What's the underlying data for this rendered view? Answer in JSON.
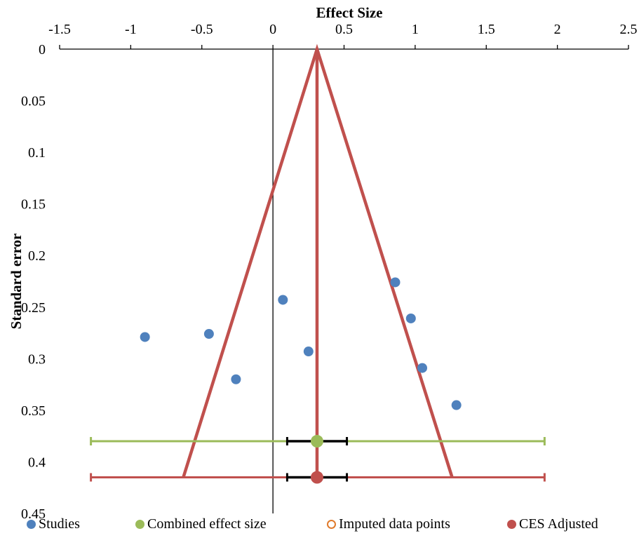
{
  "chart_data": {
    "type": "scatter",
    "title": "",
    "xlabel": "Effect Size",
    "ylabel": "Standard error",
    "xlim": [
      -1.5,
      2.5
    ],
    "ylim": [
      0,
      0.45
    ],
    "x_ticks": [
      "-1.5",
      "-1",
      "-0.5",
      "0",
      "0.5",
      "1",
      "1.5",
      "2",
      "2.5"
    ],
    "y_ticks": [
      "0",
      "0.05",
      "0.1",
      "0.15",
      "0.2",
      "0.25",
      "0.3",
      "0.35",
      "0.4",
      "0.45"
    ],
    "x_axis_position": "top",
    "y_axis_reversed": true,
    "grid": false,
    "legend_position": "bottom",
    "colors": {
      "studies": "#4f81bd",
      "combined": "#9bbb59",
      "imputed": "#e07b2c",
      "adjusted": "#c0504d",
      "whisker": "#000000"
    },
    "series": [
      {
        "name": "Studies",
        "points": [
          {
            "x": -0.9,
            "y": 0.279
          },
          {
            "x": -0.45,
            "y": 0.276
          },
          {
            "x": -0.26,
            "y": 0.32
          },
          {
            "x": 0.07,
            "y": 0.243
          },
          {
            "x": 0.25,
            "y": 0.293
          },
          {
            "x": 0.86,
            "y": 0.226
          },
          {
            "x": 0.97,
            "y": 0.261
          },
          {
            "x": 1.05,
            "y": 0.309
          },
          {
            "x": 1.29,
            "y": 0.345
          }
        ]
      },
      {
        "name": "Combined effect size",
        "points": [
          {
            "x": 0.31,
            "y": 0.38
          }
        ],
        "ci_inner": [
          0.1,
          0.52
        ],
        "prediction_interval": [
          -1.28,
          1.91
        ]
      },
      {
        "name": "Imputed data points",
        "points": []
      },
      {
        "name": "CES Adjusted",
        "points": [
          {
            "x": 0.31,
            "y": 0.415
          }
        ],
        "ci_inner": [
          0.1,
          0.52
        ],
        "prediction_interval": [
          -1.28,
          1.91
        ],
        "funnel": {
          "apex": [
            0.31,
            0
          ],
          "base_left": [
            -0.63,
            0.415
          ],
          "base_right": [
            1.26,
            0.415
          ]
        }
      }
    ]
  }
}
